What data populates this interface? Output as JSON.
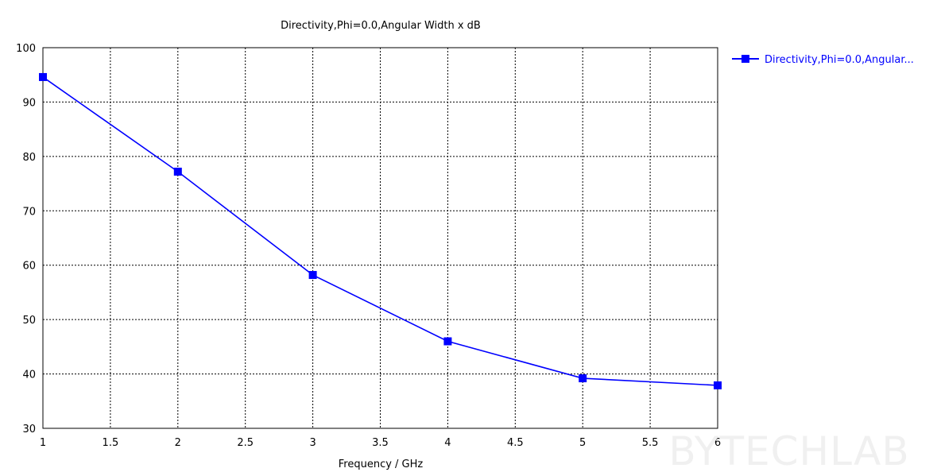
{
  "chart_data": {
    "type": "line",
    "title": "Directivity,Phi=0.0,Angular Width x dB",
    "xlabel": "Frequency / GHz",
    "ylabel": "",
    "xlim": [
      1,
      6
    ],
    "ylim": [
      30,
      100
    ],
    "xticks": [
      1,
      1.5,
      2,
      2.5,
      3,
      3.5,
      4,
      4.5,
      5,
      5.5,
      6
    ],
    "xtick_labels": [
      "1",
      "1.5",
      "2",
      "2.5",
      "3",
      "3.5",
      "4",
      "4.5",
      "5",
      "5.5",
      "6"
    ],
    "yticks": [
      30,
      40,
      50,
      60,
      70,
      80,
      90,
      100
    ],
    "ytick_labels": [
      "30",
      "40",
      "50",
      "60",
      "70",
      "80",
      "90",
      "100"
    ],
    "grid": true,
    "legend_position": "right",
    "series": [
      {
        "name": "Directivity,Phi=0.0,Angular...",
        "color": "#0000ff",
        "marker": "square",
        "x": [
          1,
          2,
          3,
          4,
          5,
          6
        ],
        "y": [
          94.6,
          77.2,
          58.2,
          46.0,
          39.2,
          37.9
        ]
      }
    ]
  },
  "watermark": "BYTECHLAB"
}
